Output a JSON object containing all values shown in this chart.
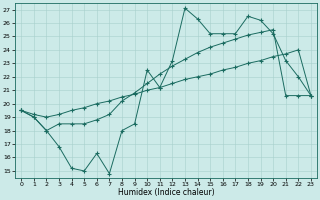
{
  "title": "",
  "xlabel": "Humidex (Indice chaleur)",
  "bg_color": "#cceae8",
  "line_color": "#1a6b60",
  "grid_color": "#a8d0cc",
  "xlim": [
    -0.5,
    23.5
  ],
  "ylim": [
    14.5,
    27.5
  ],
  "xticks": [
    0,
    1,
    2,
    3,
    4,
    5,
    6,
    7,
    8,
    9,
    10,
    11,
    12,
    13,
    14,
    15,
    16,
    17,
    18,
    19,
    20,
    21,
    22,
    23
  ],
  "yticks": [
    15,
    16,
    17,
    18,
    19,
    20,
    21,
    22,
    23,
    24,
    25,
    26,
    27
  ],
  "line_max": {
    "x": [
      0,
      1,
      2,
      3,
      4,
      5,
      6,
      7,
      8,
      9,
      10,
      11,
      12,
      13,
      14,
      15,
      16,
      17,
      18,
      19,
      20,
      21,
      22,
      23
    ],
    "y": [
      19.5,
      19.0,
      18.0,
      16.8,
      15.2,
      15.0,
      16.3,
      14.8,
      18.0,
      18.5,
      22.5,
      21.2,
      23.2,
      27.1,
      26.3,
      25.2,
      25.2,
      25.2,
      26.5,
      26.2,
      25.2,
      23.2,
      22.0,
      20.6
    ]
  },
  "line_mid": {
    "x": [
      0,
      1,
      2,
      3,
      4,
      5,
      6,
      7,
      8,
      9,
      10,
      11,
      12,
      13,
      14,
      15,
      16,
      17,
      18,
      19,
      20,
      21,
      22,
      23
    ],
    "y": [
      19.5,
      19.0,
      18.0,
      18.5,
      18.5,
      18.5,
      18.8,
      19.2,
      20.2,
      20.8,
      21.5,
      22.2,
      22.8,
      23.3,
      23.8,
      24.2,
      24.5,
      24.8,
      25.1,
      25.3,
      25.5,
      20.6,
      20.6,
      20.6
    ]
  },
  "line_min": {
    "x": [
      0,
      1,
      2,
      3,
      4,
      5,
      6,
      7,
      8,
      9,
      10,
      11,
      12,
      13,
      14,
      15,
      16,
      17,
      18,
      19,
      20,
      21,
      22,
      23
    ],
    "y": [
      19.5,
      19.2,
      19.0,
      19.2,
      19.5,
      19.7,
      20.0,
      20.2,
      20.5,
      20.7,
      21.0,
      21.2,
      21.5,
      21.8,
      22.0,
      22.2,
      22.5,
      22.7,
      23.0,
      23.2,
      23.5,
      23.7,
      24.0,
      20.6
    ]
  }
}
